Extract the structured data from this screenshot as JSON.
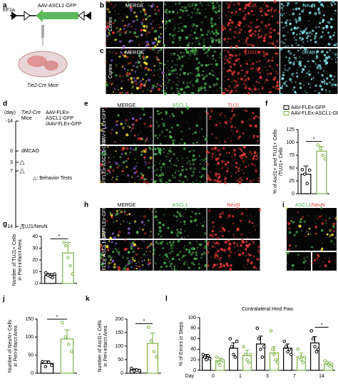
{
  "labels": {
    "letters": [
      "a",
      "b",
      "c",
      "d",
      "e",
      "f",
      "g",
      "h",
      "i",
      "j",
      "k",
      "l"
    ],
    "a": {
      "promoter": "EF1a",
      "vector": "AAV-ASCL1-GFP",
      "mouse": "Tie2-Cre Mice"
    },
    "b": {
      "channels": [
        "MERGE",
        "GFP",
        "CD31",
        "NeuN"
      ],
      "region": "Cortex"
    },
    "c": {
      "channels": [
        "MERGE",
        "GFP",
        "CD31",
        "GFAP"
      ],
      "region": "Cortex"
    },
    "d": {
      "unit": "(day)",
      "days": [
        "-14",
        "0",
        "3",
        "7",
        "14"
      ],
      "mouse": [
        "Tie2-Cre",
        "Mice"
      ],
      "virus": [
        "AAV-FLEx-",
        "ASCL1-GFP",
        "/AAV-FLEx-GFP"
      ],
      "surgery": "dMCAO",
      "end": "TUJ1/NeuN",
      "legend": "△: Behavior Tests"
    },
    "e": {
      "channels": [
        "MERGE",
        "ASCL1",
        "TUJ1"
      ],
      "rows": [
        "AAV-FLEx-GFP",
        "AAV-FLEx-ASCL1-GFP"
      ]
    },
    "h": {
      "channels": [
        "MERGE",
        "ASCL1",
        "NeuN"
      ],
      "rows": [
        "AAV-FLEx-GFP",
        "AAV-FLEx-ASCL1-GFP"
      ]
    },
    "i": {
      "channels": [
        "ASCL1",
        "/NeuN"
      ]
    }
  },
  "chart_data": [
    {
      "type": "bar",
      "ylabel": [
        "% of Ascl1+ and TUJ1+ Cells",
        "/TUJ1+ Cells"
      ],
      "categories": [
        null
      ],
      "series": [
        {
          "name": "AAV-FLEx-GFP",
          "color": "#000000",
          "values": [
            38
          ],
          "errors": [
            16
          ],
          "points": [
            [
              47,
              38,
              20,
              46
            ]
          ]
        },
        {
          "name": "AAV-FLEx-ASCL1-GFP",
          "color": "#7cb342",
          "values": [
            83
          ],
          "errors": [
            9
          ],
          "points": [
            [
              95,
              88,
              75,
              68
            ]
          ]
        }
      ],
      "ylim": [
        0,
        125
      ],
      "yticks": [
        0,
        25,
        50,
        75,
        100,
        125
      ],
      "annotations": [
        "*"
      ],
      "legend": "top"
    },
    {
      "type": "bar",
      "ylabel": [
        "Number of TUJ1+ Cells",
        "in Peri-infarct Area"
      ],
      "categories": [
        null
      ],
      "series": [
        {
          "color": "#000000",
          "values": [
            7
          ],
          "errors": [
            1.5
          ],
          "points": [
            [
              9,
              7,
              6,
              5,
              8
            ]
          ]
        },
        {
          "color": "#7cb342",
          "values": [
            26
          ],
          "errors": [
            9
          ],
          "points": [
            [
              35,
              32,
              22,
              15,
              8
            ]
          ]
        }
      ],
      "ylim": [
        0,
        40
      ],
      "yticks": [
        0,
        10,
        20,
        30,
        40
      ],
      "annotations": [
        "*"
      ]
    },
    {
      "type": "bar",
      "ylabel": [
        "Number of NeuN+ Cells",
        "in Peri-infarct Area"
      ],
      "categories": [
        null
      ],
      "series": [
        {
          "color": "#000000",
          "values": [
            27
          ],
          "errors": [
            7
          ],
          "points": [
            [
              32,
              18,
              30,
              22
            ]
          ]
        },
        {
          "color": "#7cb342",
          "values": [
            95
          ],
          "errors": [
            25
          ],
          "points": [
            [
              140,
              100,
              80,
              60
            ]
          ]
        }
      ],
      "ylim": [
        0,
        150
      ],
      "yticks": [
        0,
        50,
        100,
        150
      ],
      "annotations": [
        "*"
      ]
    },
    {
      "type": "bar",
      "ylabel": [
        "Number of Ascl1+ Cells",
        "in Peri-infarct Area"
      ],
      "categories": [
        null
      ],
      "series": [
        {
          "color": "#000000",
          "values": [
            12
          ],
          "errors": [
            4
          ],
          "points": [
            [
              18,
              8,
              12,
              10
            ]
          ]
        },
        {
          "color": "#7cb342",
          "values": [
            110
          ],
          "errors": [
            38
          ],
          "points": [
            [
              170,
              120,
              80,
              60
            ]
          ]
        }
      ],
      "ylim": [
        0,
        200
      ],
      "yticks": [
        0,
        50,
        100,
        150,
        200
      ],
      "annotations": [
        "*"
      ]
    },
    {
      "type": "bar",
      "title": "Contralateral Hind Paw",
      "ylabel": [
        "% of Errors in Steps"
      ],
      "xlabel": "Day",
      "categories": [
        "0",
        "1",
        "3",
        "7",
        "14"
      ],
      "series": [
        {
          "color": "#000000",
          "values": [
            25,
            42,
            50,
            42,
            52
          ],
          "errors": [
            5,
            10,
            15,
            8,
            12
          ],
          "points": [
            [
              30,
              25,
              20,
              28,
              22
            ],
            [
              60,
              45,
              30,
              25,
              55
            ],
            [
              80,
              60,
              40,
              25,
              45
            ],
            [
              55,
              45,
              35,
              40,
              30
            ],
            [
              75,
              60,
              45,
              35,
              40
            ]
          ]
        },
        {
          "color": "#7cb342",
          "values": [
            18,
            28,
            33,
            25,
            12
          ],
          "errors": [
            5,
            10,
            12,
            8,
            4
          ],
          "points": [
            [
              25,
              15,
              10,
              20,
              18
            ],
            [
              45,
              30,
              20,
              15,
              30
            ],
            [
              75,
              40,
              30,
              20,
              15
            ],
            [
              40,
              25,
              20,
              15,
              25
            ],
            [
              18,
              15,
              10,
              8,
              12
            ]
          ]
        }
      ],
      "ylim": [
        0,
        100
      ],
      "yticks": [
        0,
        20,
        40,
        60,
        80,
        100
      ],
      "annotations": [
        "*"
      ]
    }
  ]
}
